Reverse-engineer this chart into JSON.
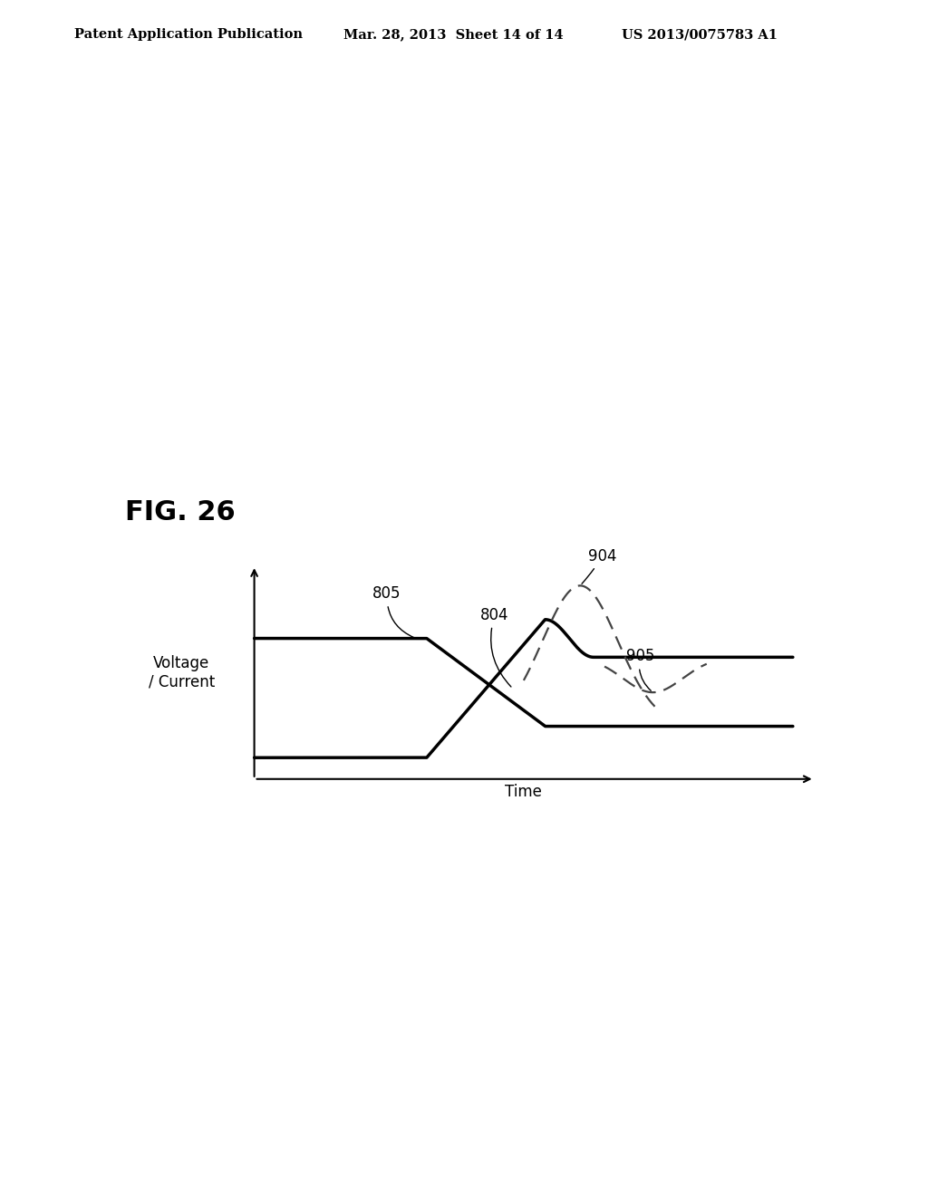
{
  "title": "FIG. 26",
  "header_left": "Patent Application Publication",
  "header_center": "Mar. 28, 2013  Sheet 14 of 14",
  "header_right": "US 2013/0075783 A1",
  "ylabel": "Voltage\n/ Current",
  "xlabel": "Time",
  "bg_color": "#ffffff",
  "line_color": "#000000",
  "label_805": "805",
  "label_804": "804",
  "label_904": "904",
  "label_905": "905"
}
